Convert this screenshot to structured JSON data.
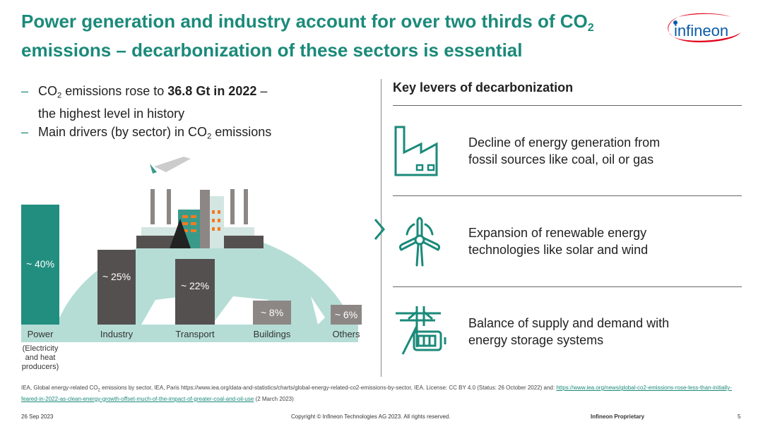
{
  "title": {
    "line1_pre": "Power generation and industry account for over two thirds of CO",
    "line1_sub": "2",
    "line2": "emissions – decarbonization of these sectors is essential"
  },
  "logo": {
    "text": "infineon",
    "ring_color": "#e2001a",
    "text_color": "#0a5aa8"
  },
  "bullets": [
    {
      "dash": "–",
      "pre": "CO",
      "sub": "2",
      "mid": " emissions rose to ",
      "bold": "36.8 Gt in 2022",
      "post": " –",
      "line2": "the highest level in history"
    },
    {
      "dash": "–",
      "pre": "Main drivers (by sector) in CO",
      "sub": "2",
      "post": " emissions"
    }
  ],
  "chart_data": {
    "type": "bar",
    "title": "Main drivers (by sector) in CO2 emissions",
    "categories": [
      "Power",
      "Industry",
      "Transport",
      "Buildings",
      "Others"
    ],
    "values": [
      40,
      25,
      22,
      8,
      6
    ],
    "labels": [
      "~ 40%",
      "~ 25%",
      "~ 22%",
      "~ 8%",
      "~ 6%"
    ],
    "colors": [
      "#218e80",
      "#555050",
      "#555050",
      "#8c8784",
      "#8c8784"
    ],
    "unit": "%",
    "xlabel": "",
    "ylabel": "",
    "note": "(Electricity and heat producers)"
  },
  "levers": {
    "title": "Key levers of decarbonization",
    "items": [
      {
        "icon": "factory-icon",
        "line1": "Decline of energy generation from",
        "line2": "fossil sources like coal, oil or gas"
      },
      {
        "icon": "wind-turbine-icon",
        "line1": "Expansion of renewable energy",
        "line2": "technologies like solar and wind"
      },
      {
        "icon": "power-pylon-battery-icon",
        "line1": "Balance of supply and demand with",
        "line2": "energy storage systems"
      }
    ]
  },
  "source": {
    "pre": "IEA, Global energy-related CO",
    "sub": "2",
    "mid": " emissions by sector, IEA, Paris https://www.iea.org/data-and-statistics/charts/global-energy-related-co2-emissions-by-sector, IEA. License: CC BY 4.0 (Status: 26 October 2022) and: ",
    "link": "https://www.iea.org/news/global-co2-emissions-rose-less-than-initially-feared-in-2022-as-clean-energy-growth-offset-much-of-the-impact-of-greater-coal-and-oil-use",
    "post": " (2 March 2023)"
  },
  "footer": {
    "date": "26 Sep 2023",
    "copyright": "Copyright © Infineon Technologies AG 2023. All rights reserved.",
    "classification": "Infineon Proprietary",
    "page": "5"
  },
  "accent": "#1b8a7a"
}
